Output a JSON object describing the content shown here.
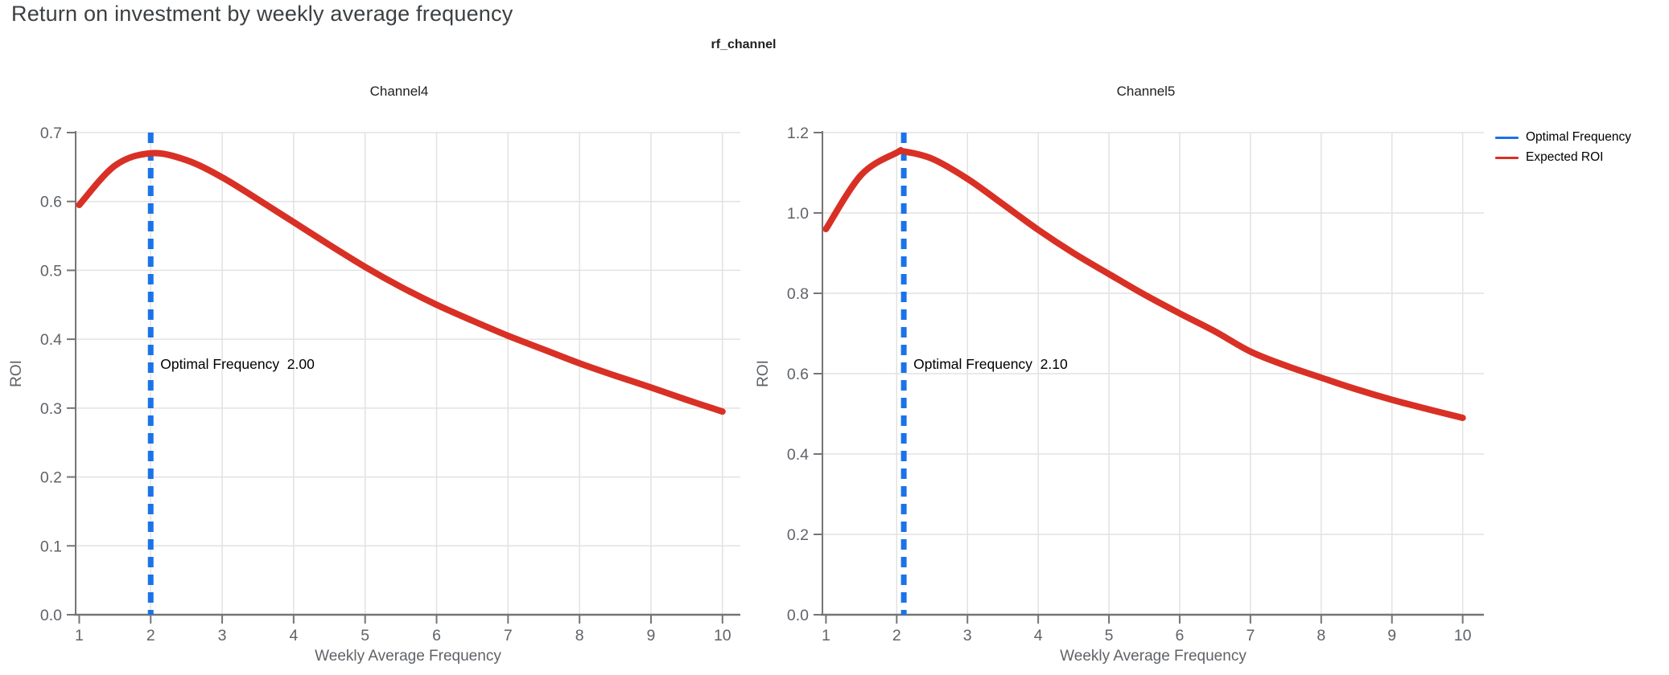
{
  "page_title": "Return on investment by weekly average frequency",
  "figure_title": "rf_channel",
  "colors": {
    "curve": "#d93025",
    "optimal_line": "#1a73e8",
    "grid": "#e2e2e2",
    "axis_line": "#757575",
    "tick_label": "#5f6368",
    "axis_title": "#5f6368",
    "annotation_text": "#000000",
    "page_title": "#3c4043"
  },
  "legend": {
    "position": "right",
    "items": [
      {
        "label": "Optimal Frequency",
        "color": "#1a73e8",
        "line_style": "solid"
      },
      {
        "label": "Expected ROI",
        "color": "#d93025",
        "line_style": "solid"
      }
    ]
  },
  "chart_data": [
    {
      "type": "line",
      "title": "Channel4",
      "xlabel": "Weekly Average Frequency",
      "ylabel": "ROI",
      "xlim": [
        0.95,
        10.25
      ],
      "ylim": [
        0,
        0.7
      ],
      "xticks": [
        1,
        2,
        3,
        4,
        5,
        6,
        7,
        8,
        9,
        10
      ],
      "yticks": [
        0.0,
        0.1,
        0.2,
        0.3,
        0.4,
        0.5,
        0.6,
        0.7
      ],
      "grid": true,
      "series": [
        {
          "name": "Expected ROI",
          "x": [
            1,
            1.5,
            2,
            2.5,
            3,
            3.5,
            4,
            4.5,
            5,
            5.5,
            6,
            6.5,
            7,
            7.5,
            8,
            8.5,
            9,
            9.5,
            10
          ],
          "y": [
            0.595,
            0.652,
            0.67,
            0.66,
            0.635,
            0.603,
            0.57,
            0.537,
            0.505,
            0.476,
            0.45,
            0.427,
            0.405,
            0.385,
            0.365,
            0.347,
            0.33,
            0.312,
            0.295
          ]
        }
      ],
      "optimal_frequency": {
        "value": 2.0,
        "label": "Optimal Frequency",
        "display": "2.00"
      }
    },
    {
      "type": "line",
      "title": "Channel5",
      "xlabel": "Weekly Average Frequency",
      "ylabel": "ROI",
      "xlim": [
        0.95,
        10.3
      ],
      "ylim": [
        0,
        1.2
      ],
      "xticks": [
        1,
        2,
        3,
        4,
        5,
        6,
        7,
        8,
        9,
        10
      ],
      "yticks": [
        0.0,
        0.2,
        0.4,
        0.6,
        0.8,
        1.0,
        1.2
      ],
      "grid": true,
      "series": [
        {
          "name": "Expected ROI",
          "x": [
            1,
            1.5,
            2,
            2.1,
            2.5,
            3,
            3.5,
            4,
            4.5,
            5,
            5.5,
            6,
            6.5,
            7,
            7.5,
            8,
            8.5,
            9,
            9.5,
            10
          ],
          "y": [
            0.96,
            1.095,
            1.15,
            1.153,
            1.135,
            1.085,
            1.022,
            0.958,
            0.9,
            0.848,
            0.797,
            0.75,
            0.705,
            0.655,
            0.62,
            0.59,
            0.561,
            0.535,
            0.512,
            0.49
          ]
        }
      ],
      "optimal_frequency": {
        "value": 2.1,
        "label": "Optimal Frequency",
        "display": "2.10"
      }
    }
  ]
}
